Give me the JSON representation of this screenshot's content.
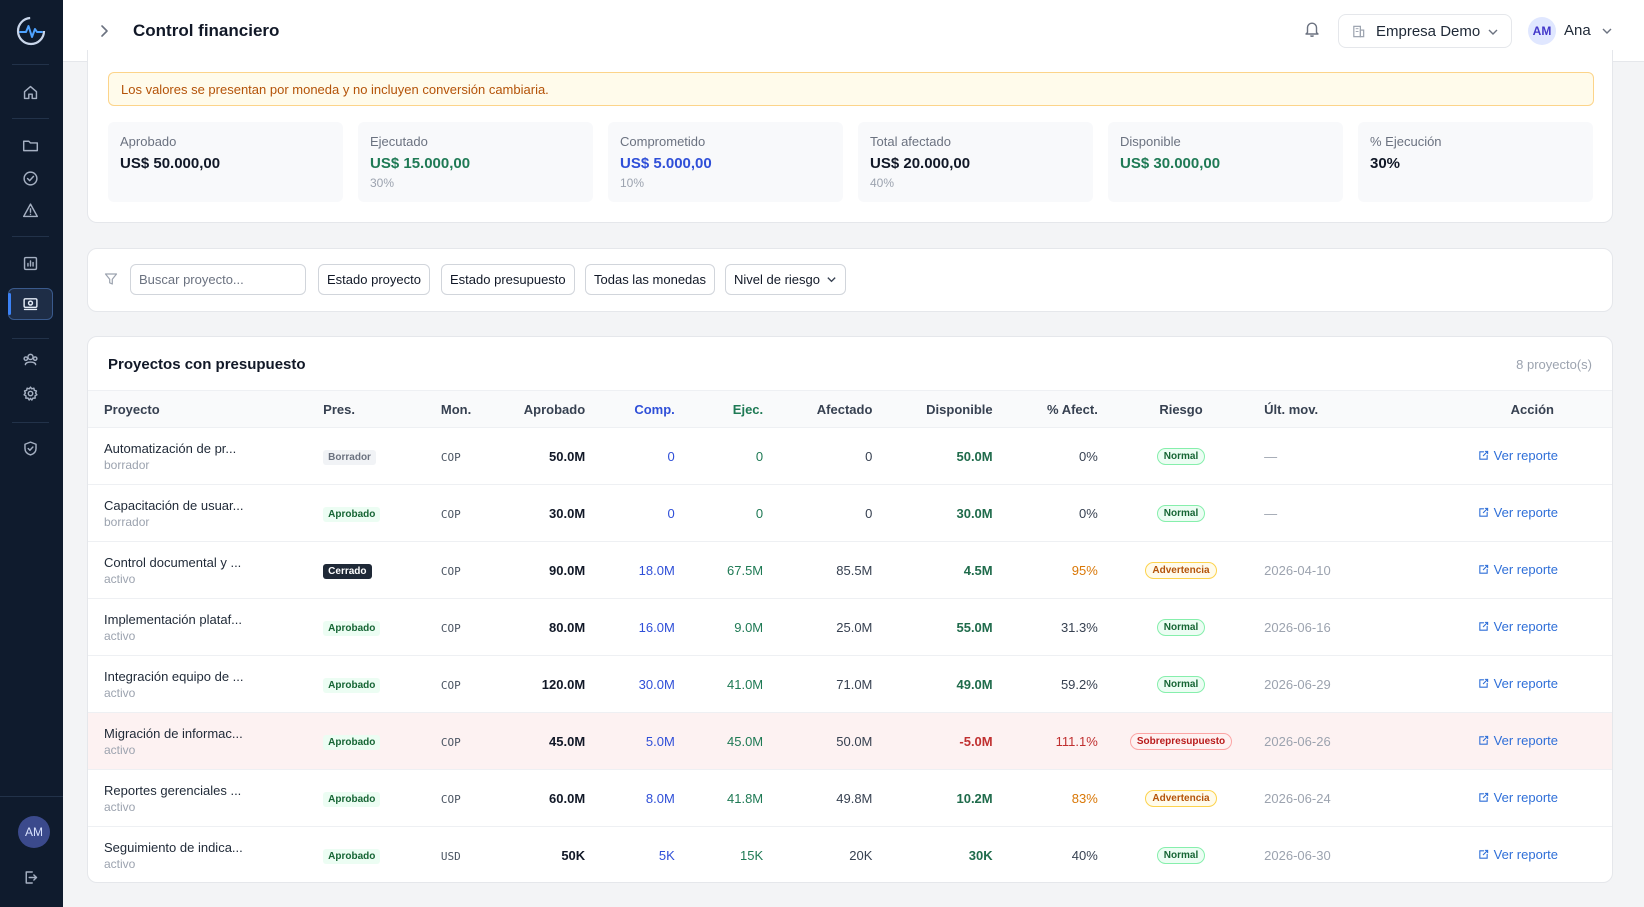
{
  "header": {
    "title": "Control financiero",
    "company": "Empresa Demo",
    "user_initials": "AM",
    "user_name": "Ana"
  },
  "sidebar": {
    "avatar_initials": "AM"
  },
  "alert": "Los valores se presentan por moneda y no incluyen conversión cambiaria.",
  "stats": [
    {
      "label": "Aprobado",
      "value": "US$ 50.000,00",
      "sub": ""
    },
    {
      "label": "Ejecutado",
      "value": "US$ 15.000,00",
      "sub": "30%"
    },
    {
      "label": "Comprometido",
      "value": "US$ 5.000,00",
      "sub": "10%"
    },
    {
      "label": "Total afectado",
      "value": "US$ 20.000,00",
      "sub": "40%"
    },
    {
      "label": "Disponible",
      "value": "US$ 30.000,00",
      "sub": ""
    },
    {
      "label": "% Ejecución",
      "value": "30%",
      "sub": ""
    }
  ],
  "filters": {
    "search_placeholder": "Buscar proyecto...",
    "estado_proyecto": "Estado proyecto",
    "estado_presupuesto": "Estado presupuesto",
    "monedas": "Todas las monedas",
    "riesgo": "Nivel de riesgo"
  },
  "table": {
    "title": "Proyectos con presupuesto",
    "count": "8 proyecto(s)",
    "headers": [
      "Proyecto",
      "Pres.",
      "Mon.",
      "Aprobado",
      "Comp.",
      "Ejec.",
      "Afectado",
      "Disponible",
      "% Afect.",
      "Riesgo",
      "Últ. mov.",
      "Acción"
    ],
    "rows": [
      {
        "name": "Automatización de pr...",
        "state": "borrador",
        "pres": "Borrador",
        "mon": "COP",
        "aprobado": "50.0M",
        "comp": "0",
        "ejec": "0",
        "afectado": "0",
        "disponible": "50.0M",
        "pct": "0%",
        "riesgo": "Normal",
        "ult": "—",
        "accion": "Ver reporte"
      },
      {
        "name": "Capacitación de usuar...",
        "state": "borrador",
        "pres": "Aprobado",
        "mon": "COP",
        "aprobado": "30.0M",
        "comp": "0",
        "ejec": "0",
        "afectado": "0",
        "disponible": "30.0M",
        "pct": "0%",
        "riesgo": "Normal",
        "ult": "—",
        "accion": "Ver reporte"
      },
      {
        "name": "Control documental y ...",
        "state": "activo",
        "pres": "Cerrado",
        "mon": "COP",
        "aprobado": "90.0M",
        "comp": "18.0M",
        "ejec": "67.5M",
        "afectado": "85.5M",
        "disponible": "4.5M",
        "pct": "95%",
        "riesgo": "Advertencia",
        "ult": "2026-04-10",
        "accion": "Ver reporte"
      },
      {
        "name": "Implementación plataf...",
        "state": "activo",
        "pres": "Aprobado",
        "mon": "COP",
        "aprobado": "80.0M",
        "comp": "16.0M",
        "ejec": "9.0M",
        "afectado": "25.0M",
        "disponible": "55.0M",
        "pct": "31.3%",
        "riesgo": "Normal",
        "ult": "2026-06-16",
        "accion": "Ver reporte"
      },
      {
        "name": "Integración equipo de ...",
        "state": "activo",
        "pres": "Aprobado",
        "mon": "COP",
        "aprobado": "120.0M",
        "comp": "30.0M",
        "ejec": "41.0M",
        "afectado": "71.0M",
        "disponible": "49.0M",
        "pct": "59.2%",
        "riesgo": "Normal",
        "ult": "2026-06-29",
        "accion": "Ver reporte"
      },
      {
        "name": "Migración de informac...",
        "state": "activo",
        "pres": "Aprobado",
        "mon": "COP",
        "aprobado": "45.0M",
        "comp": "5.0M",
        "ejec": "45.0M",
        "afectado": "50.0M",
        "disponible": "-5.0M",
        "pct": "111.1%",
        "riesgo": "Sobrepresupuesto",
        "ult": "2026-06-26",
        "accion": "Ver reporte"
      },
      {
        "name": "Reportes gerenciales ...",
        "state": "activo",
        "pres": "Aprobado",
        "mon": "COP",
        "aprobado": "60.0M",
        "comp": "8.0M",
        "ejec": "41.8M",
        "afectado": "49.8M",
        "disponible": "10.2M",
        "pct": "83%",
        "riesgo": "Advertencia",
        "ult": "2026-06-24",
        "accion": "Ver reporte"
      },
      {
        "name": "Seguimiento de indica...",
        "state": "activo",
        "pres": "Aprobado",
        "mon": "USD",
        "aprobado": "50K",
        "comp": "5K",
        "ejec": "15K",
        "afectado": "20K",
        "disponible": "30K",
        "pct": "40%",
        "riesgo": "Normal",
        "ult": "2026-06-30",
        "accion": "Ver reporte"
      }
    ]
  }
}
